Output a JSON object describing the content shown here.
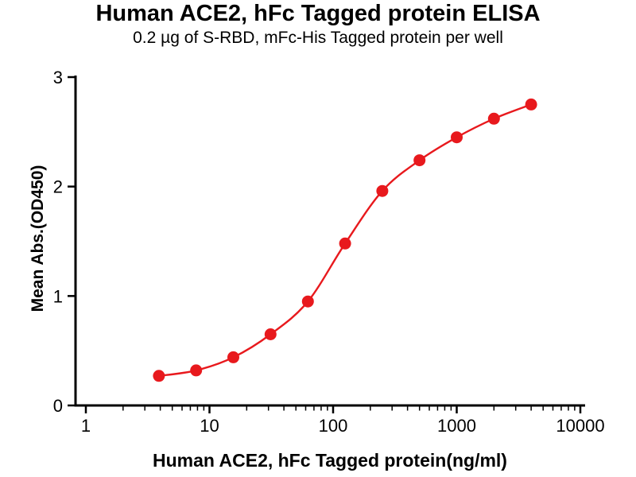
{
  "chart_data": {
    "type": "scatter",
    "title": "Human ACE2, hFc Tagged protein ELISA",
    "subtitle": "0.2 µg of S-RBD, mFc-His Tagged protein per well",
    "xlabel": "Human ACE2, hFc Tagged protein(ng/ml)",
    "ylabel": "Mean Abs.(OD450)",
    "x_scale": "log10",
    "xlim": [
      1,
      10000
    ],
    "ylim": [
      0,
      3
    ],
    "x_ticks": [
      1,
      10,
      100,
      1000,
      10000
    ],
    "y_ticks": [
      0,
      1,
      2,
      3
    ],
    "grid": false,
    "legend": "none",
    "accent_color": "#e8191d",
    "axis_color": "#000000",
    "series": [
      {
        "name": "Human ACE2, hFc Tagged protein",
        "color": "#e8191d",
        "x": [
          3.9,
          7.8,
          15.6,
          31.2,
          62.5,
          125,
          250,
          500,
          1000,
          2000,
          4000
        ],
        "y": [
          0.27,
          0.32,
          0.44,
          0.65,
          0.95,
          1.48,
          1.96,
          2.24,
          2.45,
          2.62,
          2.75
        ]
      }
    ]
  }
}
